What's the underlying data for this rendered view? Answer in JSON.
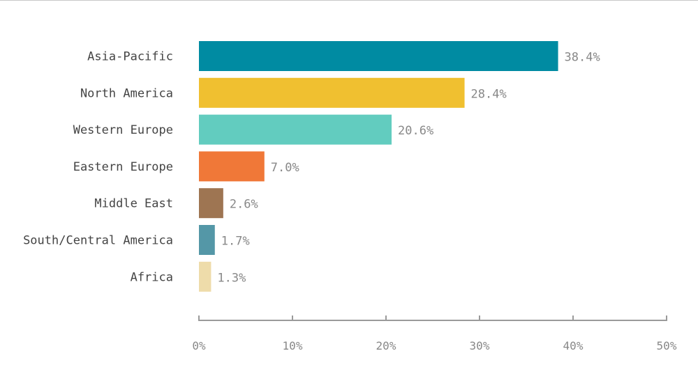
{
  "chart_data": {
    "type": "bar",
    "orientation": "horizontal",
    "title": "",
    "xlabel": "",
    "ylabel": "",
    "categories": [
      "Asia-Pacific",
      "North America",
      "Western Europe",
      "Eastern Europe",
      "Middle East",
      "South/Central America",
      "Africa"
    ],
    "values": [
      38.4,
      28.4,
      20.6,
      7.0,
      2.6,
      1.7,
      1.3
    ],
    "value_labels": [
      "38.4%",
      "28.4%",
      "20.6%",
      "7.0%",
      "2.6%",
      "1.7%",
      "1.3%"
    ],
    "colors": [
      "#008ba2",
      "#f0c030",
      "#62ccbf",
      "#f07838",
      "#9e7552",
      "#5497a7",
      "#eedcaa"
    ],
    "xlim": [
      0,
      50
    ],
    "ticks": [
      0,
      10,
      20,
      30,
      40,
      50
    ],
    "tick_labels": [
      "0%",
      "10%",
      "20%",
      "30%",
      "40%",
      "50%"
    ],
    "grid": false,
    "legend": "none"
  }
}
